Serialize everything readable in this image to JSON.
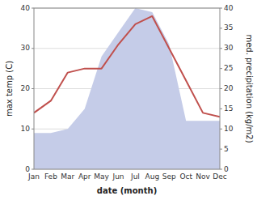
{
  "chart_data": {
    "type": "line",
    "xlabel": "date (month)",
    "ylabel": "max temp (C)",
    "y2label": "med. precipitation (kg/m2)",
    "categories": [
      "Jan",
      "Feb",
      "Mar",
      "Apr",
      "May",
      "Jun",
      "Jul",
      "Aug",
      "Sep",
      "Oct",
      "Nov",
      "Dec"
    ],
    "series": [
      {
        "type": "area",
        "axis": "y2",
        "color": "#c5cce8",
        "values": [
          9,
          9,
          10,
          15,
          28,
          34,
          40,
          39,
          31,
          12,
          12,
          12
        ]
      },
      {
        "type": "line",
        "color": "#c0504d",
        "values": [
          14,
          17,
          24,
          25,
          25,
          31,
          36,
          38,
          30,
          22,
          14,
          13
        ]
      }
    ],
    "ylim": [
      0,
      40
    ],
    "yticks": [
      0,
      10,
      20,
      30,
      40
    ],
    "y2lim": [
      0,
      40
    ],
    "y2ticks": [
      0,
      5,
      10,
      15,
      20,
      25,
      30,
      35,
      40
    ],
    "grid": true
  }
}
